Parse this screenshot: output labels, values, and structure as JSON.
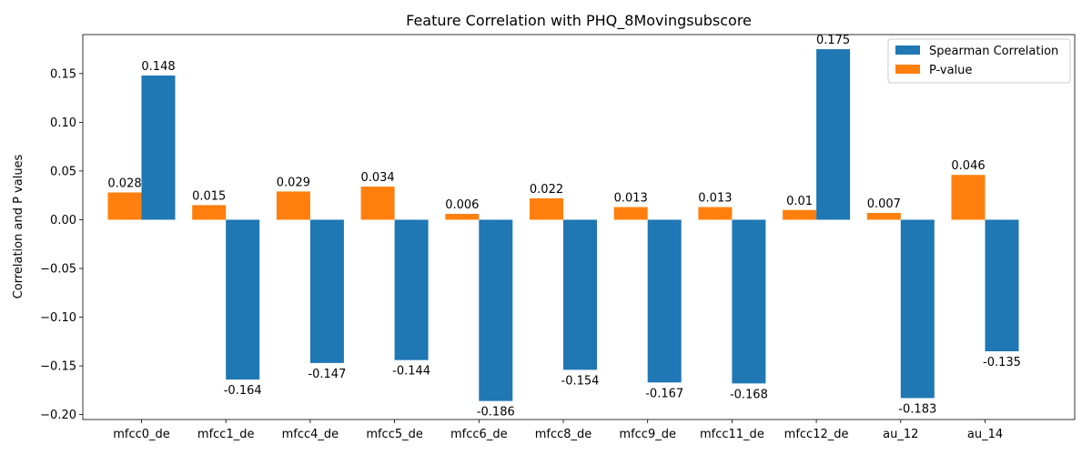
{
  "chart_data": {
    "type": "bar",
    "title": "Feature Correlation with PHQ_8Movingsubscore",
    "xlabel": "",
    "ylabel": "Correlation and P values",
    "categories": [
      "mfcc0_de",
      "mfcc1_de",
      "mfcc4_de",
      "mfcc5_de",
      "mfcc6_de",
      "mfcc8_de",
      "mfcc9_de",
      "mfcc11_de",
      "mfcc12_de",
      "au_12",
      "au_14"
    ],
    "series": [
      {
        "name": "P-value",
        "color": "#ff7f0e",
        "values": [
          0.028,
          0.015,
          0.029,
          0.034,
          0.006,
          0.022,
          0.013,
          0.013,
          0.01,
          0.007,
          0.046
        ],
        "labels": [
          "0.028",
          "0.015",
          "0.029",
          "0.034",
          "0.006",
          "0.022",
          "0.013",
          "0.013",
          "0.01",
          "0.007",
          "0.046"
        ]
      },
      {
        "name": "Spearman Correlation",
        "color": "#1f77b4",
        "values": [
          0.148,
          -0.164,
          -0.147,
          -0.144,
          -0.186,
          -0.154,
          -0.167,
          -0.168,
          0.175,
          -0.183,
          -0.135
        ],
        "labels": [
          "0.148",
          "-0.164",
          "-0.147",
          "-0.144",
          "-0.186",
          "-0.154",
          "-0.167",
          "-0.168",
          "0.175",
          "-0.183",
          "-0.135"
        ]
      }
    ],
    "ylim": [
      -0.205,
      0.19
    ],
    "yticks": [
      -0.2,
      -0.15,
      -0.1,
      -0.05,
      0.0,
      0.05,
      0.1,
      0.15
    ],
    "ytick_labels": [
      "−0.20",
      "−0.15",
      "−0.10",
      "−0.05",
      "0.00",
      "0.05",
      "0.10",
      "0.15"
    ],
    "legend": {
      "placement": "top-right",
      "entries": [
        {
          "label": "Spearman Correlation",
          "color": "#1f77b4"
        },
        {
          "label": "P-value",
          "color": "#ff7f0e"
        }
      ]
    },
    "grid": false
  }
}
